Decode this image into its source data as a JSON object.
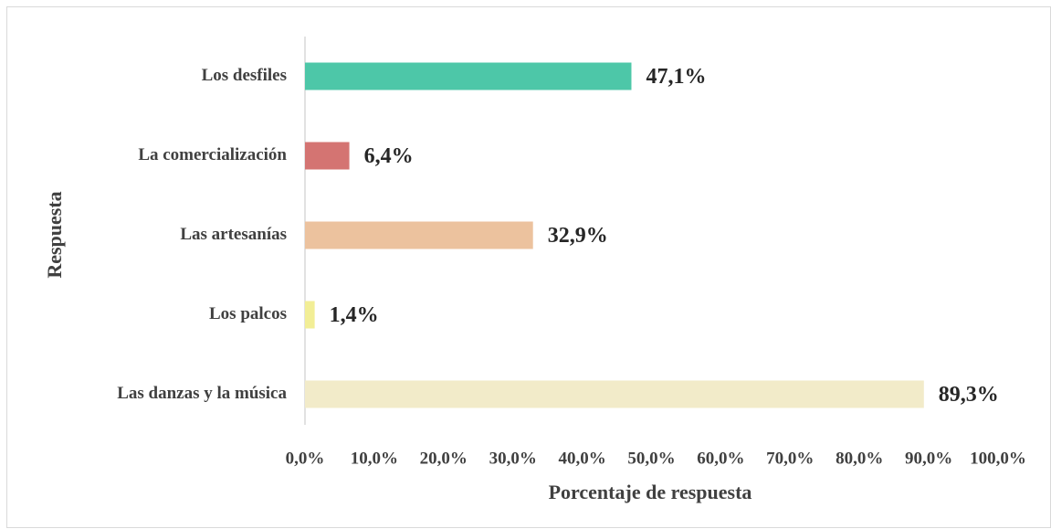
{
  "chart_data": {
    "type": "bar",
    "orientation": "horizontal",
    "categories": [
      "Los desfiles",
      "La comercialización",
      "Las artesanías",
      "Los palcos",
      "Las danzas y la música"
    ],
    "values": [
      47.1,
      6.4,
      32.9,
      1.4,
      89.3
    ],
    "value_labels": [
      "47,1%",
      "6,4%",
      "32,9%",
      "1,4%",
      "89,3%"
    ],
    "colors": [
      "#4dc7a8",
      "#d47472",
      "#ecc29e",
      "#f2ee96",
      "#f2ebc9"
    ],
    "xlabel": "Porcentaje de respuesta",
    "ylabel": "Respuesta",
    "xlim": [
      0,
      100
    ],
    "xticks": [
      {
        "value": 0,
        "label": "0,0%"
      },
      {
        "value": 10,
        "label": "10,0%"
      },
      {
        "value": 20,
        "label": "20,0%"
      },
      {
        "value": 30,
        "label": "30,0%"
      },
      {
        "value": 40,
        "label": "40,0%"
      },
      {
        "value": 50,
        "label": "50,0%"
      },
      {
        "value": 60,
        "label": "60,0%"
      },
      {
        "value": 70,
        "label": "70,0%"
      },
      {
        "value": 80,
        "label": "80,0%"
      },
      {
        "value": 90,
        "label": "90,0%"
      },
      {
        "value": 100,
        "label": "100,0%"
      }
    ],
    "grid": false
  }
}
